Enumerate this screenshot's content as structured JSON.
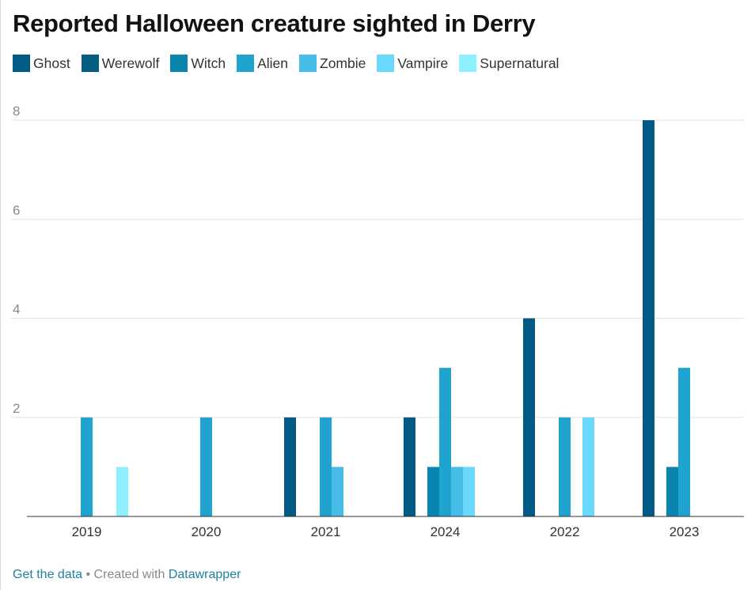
{
  "title": "Reported Halloween creature sighted in Derry",
  "footer": {
    "get_data": "Get the data",
    "separator": " • Created with ",
    "source": "Datawrapper"
  },
  "chart_data": {
    "type": "bar",
    "title": "Reported Halloween creature sighted in Derry",
    "xlabel": "",
    "ylabel": "",
    "ylim": [
      0,
      8
    ],
    "yticks": [
      2,
      4,
      6,
      8
    ],
    "grid": true,
    "legend_position": "top-left",
    "categories": [
      "2019",
      "2020",
      "2021",
      "2024",
      "2022",
      "2023"
    ],
    "series": [
      {
        "name": "Ghost",
        "color": "#015a83",
        "values": [
          0,
          0,
          2,
          2,
          4,
          8
        ]
      },
      {
        "name": "Werewolf",
        "color": "#045e7f",
        "values": [
          0,
          0,
          0,
          0,
          0,
          0
        ]
      },
      {
        "name": "Witch",
        "color": "#0a85ae",
        "values": [
          0,
          0,
          0,
          1,
          0,
          1
        ]
      },
      {
        "name": "Alien",
        "color": "#1ea4ce",
        "values": [
          2,
          2,
          2,
          3,
          2,
          3
        ]
      },
      {
        "name": "Zombie",
        "color": "#47bce7",
        "values": [
          0,
          0,
          1,
          1,
          0,
          0
        ]
      },
      {
        "name": "Vampire",
        "color": "#6ad8fd",
        "values": [
          0,
          0,
          0,
          1,
          2,
          0
        ]
      },
      {
        "name": "Supernatural",
        "color": "#8ef0fe",
        "values": [
          1,
          0,
          0,
          0,
          0,
          0
        ]
      }
    ]
  }
}
